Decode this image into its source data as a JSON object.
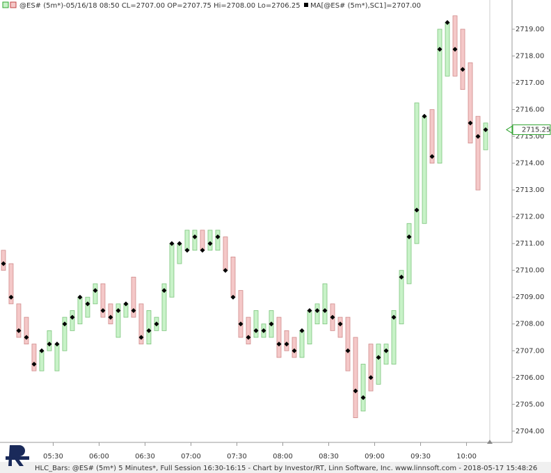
{
  "chart_data": {
    "type": "hlc",
    "header": "@ES# (5m*)-05/16/18 08:50 CL=2707.00 OP=2707.75 Hi=2708.00 Lo=2706.25",
    "ma_header": "MA[@ES# (5m*),SC1]=2707.00",
    "footer": "HLC_Bars: @ES# (5m*) 5 Minutes*, Full Session 16:30-16:15 - Chart by Investor/RT, Linn Software, Inc. www.linnsoft.com - 2018-05-17 15:48:26",
    "categories": [
      null,
      null,
      null,
      null,
      null,
      null,
      null,
      null,
      null,
      null,
      null,
      null,
      null,
      null,
      null,
      null,
      null,
      null,
      null,
      null,
      null,
      null,
      null,
      null,
      null,
      null,
      null,
      null,
      null,
      null,
      null,
      null,
      null,
      null,
      null,
      null,
      null,
      null,
      null,
      null,
      null,
      null,
      null,
      null,
      null,
      null,
      null,
      null,
      null,
      null,
      null,
      null,
      null,
      null,
      null,
      null,
      null,
      null,
      null,
      null,
      null,
      null,
      null,
      null
    ],
    "high": [
      2710.75,
      2710.25,
      2708.75,
      2708.25,
      2707.25,
      2707.0,
      2707.75,
      2707.25,
      2708.25,
      2708.5,
      2709.0,
      2709.0,
      2709.5,
      2709.5,
      2708.75,
      2708.75,
      2708.75,
      2709.75,
      2708.75,
      2708.5,
      2708.25,
      2709.5,
      2711.0,
      2711.0,
      2711.5,
      2711.5,
      2711.5,
      2711.5,
      2711.5,
      2711.25,
      2710.5,
      2709.25,
      2708.25,
      2708.5,
      2708.0,
      2708.5,
      2708.25,
      2707.75,
      2707.5,
      2707.75,
      2708.5,
      2708.75,
      2709.5,
      2708.75,
      2708.25,
      2708.25,
      2707.5,
      2706.5,
      2707.25,
      2707.25,
      2707.25,
      2708.5,
      2710.0,
      2711.75,
      2716.25,
      2715.75,
      2716.0,
      2719.0,
      2719.25,
      2719.5,
      2719.0,
      2717.75,
      2715.75,
      2715.5
    ],
    "low": [
      2710.0,
      2708.75,
      2707.5,
      2707.25,
      2706.25,
      2706.25,
      2707.0,
      2706.25,
      2707.0,
      2707.75,
      2708.0,
      2708.25,
      2708.75,
      2708.25,
      2708.0,
      2707.5,
      2708.25,
      2708.25,
      2707.25,
      2707.25,
      2707.75,
      2707.75,
      2709.0,
      2710.25,
      2710.75,
      2710.75,
      2710.75,
      2710.75,
      2710.75,
      2710.0,
      2709.0,
      2707.5,
      2707.25,
      2707.5,
      2707.5,
      2707.5,
      2706.75,
      2707.0,
      2706.75,
      2706.75,
      2707.25,
      2708.0,
      2708.0,
      2707.75,
      2707.5,
      2706.25,
      2704.5,
      2704.75,
      2705.5,
      2705.75,
      2706.5,
      2706.5,
      2708.0,
      2709.5,
      2711.0,
      2711.75,
      2714.0,
      2714.0,
      2717.25,
      2717.25,
      2716.75,
      2714.75,
      2713.0,
      2714.5
    ],
    "close": [
      2710.25,
      2709.0,
      2707.75,
      2707.5,
      2706.5,
      2707.0,
      2707.25,
      2707.25,
      2708.0,
      2708.25,
      2709.0,
      2708.75,
      2709.25,
      2708.5,
      2708.25,
      2708.5,
      2708.75,
      2708.5,
      2707.5,
      2707.75,
      2708.0,
      2709.25,
      2711.0,
      2711.0,
      2710.75,
      2711.25,
      2710.75,
      2711.0,
      2711.25,
      2710.0,
      2709.0,
      2708.0,
      2707.5,
      2707.75,
      2707.75,
      2708.0,
      2707.25,
      2707.25,
      2707.0,
      2707.75,
      2708.5,
      2708.5,
      2708.5,
      2708.25,
      2708.0,
      2707.0,
      2705.5,
      2705.25,
      2706.0,
      2706.75,
      2707.0,
      2708.25,
      2709.75,
      2711.25,
      2712.25,
      2715.75,
      2714.25,
      2718.25,
      2719.25,
      2718.25,
      2717.5,
      2715.5,
      2715.0,
      2715.25
    ],
    "bar_colors": [
      "#f4c8c8",
      "#f4c8c8",
      "#f4c8c8",
      "#f4c8c8",
      "#f4c8c8",
      "#c8f2c8",
      "#c8f2c8",
      "#c8f2c8",
      "#c8f2c8",
      "#c8f2c8",
      "#c8f2c8",
      "#c8f2c8",
      "#c8f2c8",
      "#f4c8c8",
      "#f4c8c8",
      "#c8f2c8",
      "#c8f2c8",
      "#f4c8c8",
      "#f4c8c8",
      "#c8f2c8",
      "#c8f2c8",
      "#c8f2c8",
      "#c8f2c8",
      "#c8f2c8",
      "#c8f2c8",
      "#c8f2c8",
      "#f4c8c8",
      "#c8f2c8",
      "#c8f2c8",
      "#f4c8c8",
      "#f4c8c8",
      "#f4c8c8",
      "#f4c8c8",
      "#c8f2c8",
      "#c8f2c8",
      "#c8f2c8",
      "#f4c8c8",
      "#f4c8c8",
      "#f4c8c8",
      "#c8f2c8",
      "#c8f2c8",
      "#c8f2c8",
      "#c8f2c8",
      "#f4c8c8",
      "#f4c8c8",
      "#f4c8c8",
      "#f4c8c8",
      "#c8f2c8",
      "#f4c8c8",
      "#c8f2c8",
      "#c8f2c8",
      "#c8f2c8",
      "#c8f2c8",
      "#c8f2c8",
      "#c8f2c8",
      "#c8f2c8",
      "#f4c8c8",
      "#c8f2c8",
      "#c8f2c8",
      "#f4c8c8",
      "#f4c8c8",
      "#f4c8c8",
      "#f4c8c8",
      "#c8f2c8"
    ],
    "ma_color": "#000000",
    "last_color": "#2ea32e",
    "xlim": [
      -0.45,
      66.45
    ],
    "xticks": [
      {
        "value": 6.5,
        "label": "05:30"
      },
      {
        "value": 12.5,
        "label": "06:00"
      },
      {
        "value": 18.5,
        "label": "06:30"
      },
      {
        "value": 24.5,
        "label": "07:00"
      },
      {
        "value": 30.5,
        "label": "07:30"
      },
      {
        "value": 36.5,
        "label": "08:00"
      },
      {
        "value": 42.5,
        "label": "08:30"
      },
      {
        "value": 48.5,
        "label": "09:00"
      },
      {
        "value": 54.5,
        "label": "09:30"
      },
      {
        "value": 60.5,
        "label": "10:00"
      }
    ],
    "ylim": [
      2703.58,
      2720.09
    ],
    "yticks": [
      {
        "value": 2704,
        "label": "2704.00"
      },
      {
        "value": 2705,
        "label": "2705.00"
      },
      {
        "value": 2706,
        "label": "2706.00"
      },
      {
        "value": 2707,
        "label": "2707.00"
      },
      {
        "value": 2708,
        "label": "2708.00"
      },
      {
        "value": 2709,
        "label": "2709.00"
      },
      {
        "value": 2710,
        "label": "2710.00"
      },
      {
        "value": 2711,
        "label": "2711.00"
      },
      {
        "value": 2712,
        "label": "2712.00"
      },
      {
        "value": 2713,
        "label": "2713.00"
      },
      {
        "value": 2714,
        "label": "2714.00"
      },
      {
        "value": 2715,
        "label": "2715.00"
      },
      {
        "value": 2716,
        "label": "2716.00"
      },
      {
        "value": 2717,
        "label": "2717.00"
      },
      {
        "value": 2718,
        "label": "2718.00"
      },
      {
        "value": 2719,
        "label": "2719.00"
      }
    ]
  }
}
